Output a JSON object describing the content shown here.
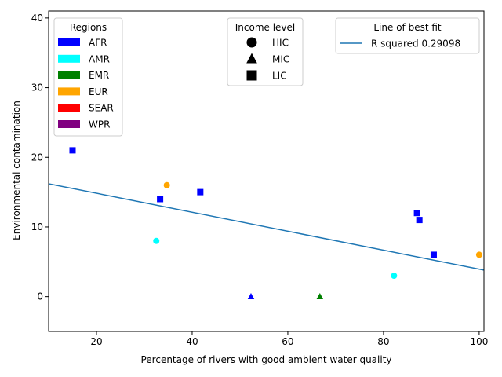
{
  "chart_data": {
    "type": "scatter",
    "title": "",
    "xlabel": "Percentage of rivers with good ambient water quality",
    "ylabel": "Environmental contamination",
    "xlim": [
      10,
      101
    ],
    "ylim": [
      -5,
      41
    ],
    "xticks": [
      20,
      40,
      60,
      80,
      100
    ],
    "yticks": [
      0,
      10,
      20,
      30,
      40
    ],
    "grid": false,
    "region_colors": {
      "AFR": "#0000ff",
      "AMR": "#00ffff",
      "EMR": "#008000",
      "EUR": "#ffa500",
      "SEAR": "#ff0000",
      "WPR": "#800080"
    },
    "points": [
      {
        "x": 15.0,
        "y": 21,
        "region": "AFR",
        "income": "LIC"
      },
      {
        "x": 33.3,
        "y": 14,
        "region": "AFR",
        "income": "LIC"
      },
      {
        "x": 41.7,
        "y": 15,
        "region": "AFR",
        "income": "LIC"
      },
      {
        "x": 87.0,
        "y": 12,
        "region": "AFR",
        "income": "LIC"
      },
      {
        "x": 87.5,
        "y": 11,
        "region": "AFR",
        "income": "LIC"
      },
      {
        "x": 90.5,
        "y": 6,
        "region": "AFR",
        "income": "LIC"
      },
      {
        "x": 34.7,
        "y": 16,
        "region": "EUR",
        "income": "HIC"
      },
      {
        "x": 100.0,
        "y": 6,
        "region": "EUR",
        "income": "HIC"
      },
      {
        "x": 32.5,
        "y": 8,
        "region": "AMR",
        "income": "HIC"
      },
      {
        "x": 82.2,
        "y": 3,
        "region": "AMR",
        "income": "HIC"
      },
      {
        "x": 52.3,
        "y": 0,
        "region": "AFR",
        "income": "MIC"
      },
      {
        "x": 66.7,
        "y": 0,
        "region": "EMR",
        "income": "MIC"
      }
    ],
    "fit_line": {
      "x": [
        10,
        101
      ],
      "y": [
        16.2,
        3.8
      ],
      "color": "#1f77b4"
    },
    "legends": {
      "regions": {
        "title": "Regions",
        "placement": "upper-left",
        "items": [
          "AFR",
          "AMR",
          "EMR",
          "EUR",
          "SEAR",
          "WPR"
        ]
      },
      "income": {
        "title": "Income level",
        "placement": "upper-center",
        "items": [
          {
            "label": "HIC",
            "marker": "circle"
          },
          {
            "label": "MIC",
            "marker": "triangle"
          },
          {
            "label": "LIC",
            "marker": "square"
          }
        ]
      },
      "fit": {
        "title": "Line of best fit",
        "placement": "upper-right",
        "items": [
          {
            "label": "R squared 0.29098",
            "color": "#1f77b4"
          }
        ]
      }
    }
  }
}
